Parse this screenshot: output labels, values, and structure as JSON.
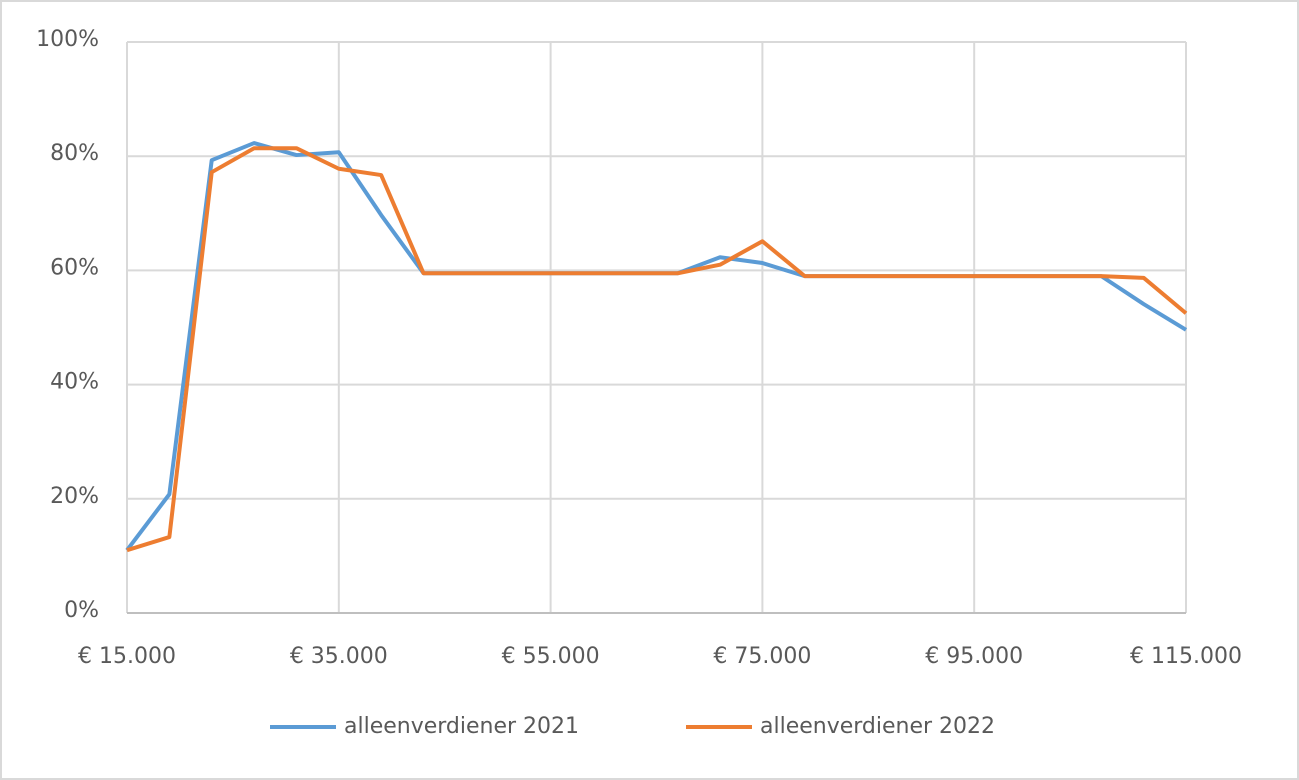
{
  "chart_data": {
    "type": "line",
    "x": [
      15000,
      19000,
      23000,
      27000,
      31000,
      35000,
      39000,
      43000,
      47000,
      51000,
      55000,
      59000,
      63000,
      67000,
      71000,
      75000,
      79000,
      83000,
      87000,
      91000,
      95000,
      99000,
      103000,
      107000,
      111000,
      115000
    ],
    "series": [
      {
        "name": "alleenverdiener 2021",
        "color": "#5b9bd5",
        "values": [
          11,
          20.8,
          79.3,
          82.3,
          80.2,
          80.7,
          69.7,
          59.5,
          59.5,
          59.5,
          59.5,
          59.5,
          59.5,
          59.5,
          62.3,
          61.3,
          59,
          59,
          59,
          59,
          59,
          59,
          59,
          59,
          54.1,
          49.6
        ]
      },
      {
        "name": "alleenverdiener 2022",
        "color": "#ed7d31",
        "values": [
          11,
          13.3,
          77.2,
          81.4,
          81.4,
          77.8,
          76.7,
          59.5,
          59.5,
          59.5,
          59.5,
          59.5,
          59.5,
          59.5,
          61,
          65.1,
          59,
          59,
          59,
          59,
          59,
          59,
          59,
          59,
          58.7,
          52.5
        ]
      }
    ],
    "xlim": [
      15000,
      115000
    ],
    "xticks": [
      {
        "value": 15000,
        "label": "€ 15.000"
      },
      {
        "value": 35000,
        "label": "€ 35.000"
      },
      {
        "value": 55000,
        "label": "€ 55.000"
      },
      {
        "value": 75000,
        "label": "€ 75.000"
      },
      {
        "value": 95000,
        "label": "€ 95.000"
      },
      {
        "value": 115000,
        "label": "€ 115.000"
      }
    ],
    "ylim": [
      0,
      100
    ],
    "yticks": [
      {
        "value": 0,
        "label": "0%"
      },
      {
        "value": 20,
        "label": "20%"
      },
      {
        "value": 40,
        "label": "40%"
      },
      {
        "value": 60,
        "label": "60%"
      },
      {
        "value": 80,
        "label": "80%"
      },
      {
        "value": 100,
        "label": "100%"
      }
    ],
    "grid": true,
    "legend": "bottom"
  }
}
